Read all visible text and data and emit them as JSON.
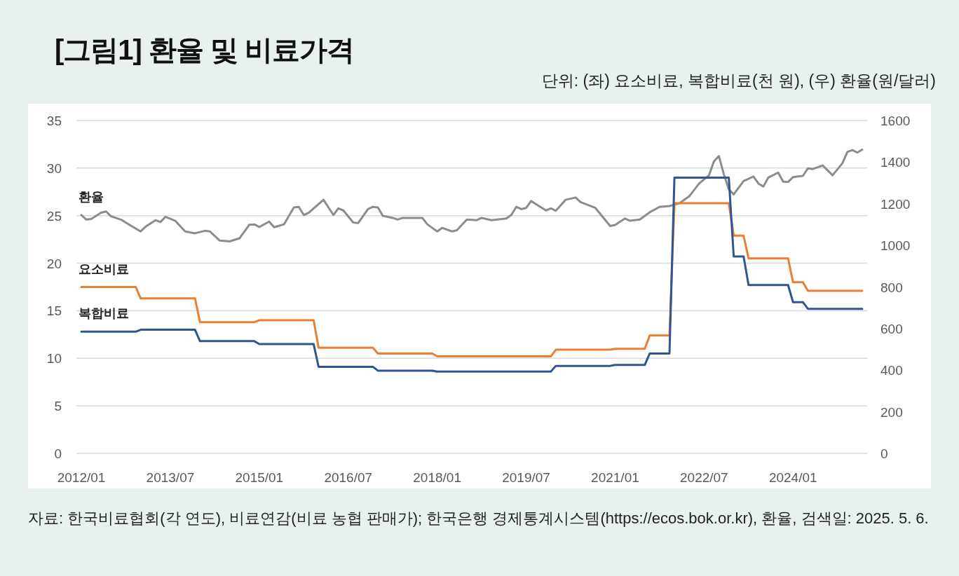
{
  "chart_data": {
    "type": "line",
    "title": "[그림1] 환율 및 비료가격",
    "subtitle": "단위: (좌) 요소비료, 복합비료(천 원), (우) 환율(원/달러)",
    "annotations": [
      "자료: 한국비료협회(각 연도), 비료연감(비료 농협 판매가); 한국은행 경제통계시스템(https://ecos.bok.or.kr), 환율, 검색일: 2025. 5. 6."
    ],
    "xlim": [
      "2011-12",
      "2025-04"
    ],
    "xticks": [
      {
        "value": "2012-01",
        "label": "2012/01"
      },
      {
        "value": "2013-07",
        "label": "2013/07"
      },
      {
        "value": "2015-01",
        "label": "2015/01"
      },
      {
        "value": "2016-07",
        "label": "2016/07"
      },
      {
        "value": "2018-01",
        "label": "2018/01"
      },
      {
        "value": "2019-07",
        "label": "2019/07"
      },
      {
        "value": "2021-01",
        "label": "2021/01"
      },
      {
        "value": "2022-07",
        "label": "2022/07"
      },
      {
        "value": "2024-01",
        "label": "2024/01"
      }
    ],
    "ylim": [
      0,
      35
    ],
    "yticks": [
      0,
      5,
      10,
      15,
      20,
      25,
      30,
      35
    ],
    "y2lim": [
      0,
      1600
    ],
    "y2ticks": [
      0,
      200,
      400,
      600,
      800,
      1000,
      1200,
      1400,
      1600
    ],
    "grid": "y",
    "series": [
      {
        "name": "환율",
        "color": "#8c8c8c",
        "axis": "y2",
        "x": [
          "2012-01",
          "2012-02",
          "2012-03",
          "2012-05",
          "2012-06",
          "2012-07",
          "2012-09",
          "2012-11",
          "2013-01",
          "2013-02",
          "2013-04",
          "2013-05",
          "2013-06",
          "2013-08",
          "2013-10",
          "2013-12",
          "2014-02",
          "2014-03",
          "2014-05",
          "2014-07",
          "2014-09",
          "2014-11",
          "2014-12",
          "2015-01",
          "2015-03",
          "2015-04",
          "2015-06",
          "2015-08",
          "2015-09",
          "2015-10",
          "2015-11",
          "2016-02",
          "2016-04",
          "2016-05",
          "2016-06",
          "2016-08",
          "2016-09",
          "2016-11",
          "2016-12",
          "2017-01",
          "2017-02",
          "2017-04",
          "2017-05",
          "2017-06",
          "2017-10",
          "2017-11",
          "2018-01",
          "2018-02",
          "2018-04",
          "2018-05",
          "2018-07",
          "2018-09",
          "2018-10",
          "2018-12",
          "2019-03",
          "2019-04",
          "2019-05",
          "2019-06",
          "2019-07",
          "2019-08",
          "2019-11",
          "2019-12",
          "2020-01",
          "2020-03",
          "2020-05",
          "2020-06",
          "2020-09",
          "2020-12",
          "2021-01",
          "2021-03",
          "2021-04",
          "2021-06",
          "2021-08",
          "2021-10",
          "2021-12",
          "2022-02",
          "2022-04",
          "2022-06",
          "2022-08",
          "2022-09",
          "2022-10",
          "2022-11",
          "2022-12",
          "2023-01",
          "2023-03",
          "2023-05",
          "2023-06",
          "2023-07",
          "2023-08",
          "2023-10",
          "2023-11",
          "2023-12",
          "2024-01",
          "2024-03",
          "2024-04",
          "2024-05",
          "2024-07",
          "2024-09",
          "2024-11",
          "2024-12",
          "2025-01",
          "2025-02",
          "2025-03"
        ],
        "values": [
          1146,
          1124,
          1127,
          1157,
          1163,
          1140,
          1124,
          1095,
          1067,
          1090,
          1121,
          1112,
          1137,
          1118,
          1067,
          1058,
          1070,
          1067,
          1023,
          1019,
          1034,
          1099,
          1101,
          1088,
          1114,
          1087,
          1101,
          1182,
          1185,
          1146,
          1157,
          1219,
          1146,
          1178,
          1168,
          1110,
          1107,
          1174,
          1185,
          1182,
          1142,
          1132,
          1124,
          1132,
          1132,
          1101,
          1067,
          1084,
          1067,
          1073,
          1124,
          1121,
          1132,
          1121,
          1129,
          1146,
          1185,
          1174,
          1180,
          1213,
          1168,
          1178,
          1166,
          1219,
          1230,
          1208,
          1180,
          1093,
          1098,
          1129,
          1118,
          1124,
          1159,
          1185,
          1189,
          1202,
          1236,
          1297,
          1337,
          1404,
          1429,
          1342,
          1269,
          1245,
          1309,
          1331,
          1297,
          1283,
          1326,
          1350,
          1306,
          1305,
          1328,
          1334,
          1370,
          1367,
          1384,
          1337,
          1395,
          1449,
          1458,
          1446,
          1460
        ]
      },
      {
        "name": "요소비료",
        "color": "#ed7d31",
        "x": [
          "2012-01",
          "2012-12",
          "2013-01",
          "2013-12",
          "2014-01",
          "2014-12",
          "2015-01",
          "2015-12",
          "2016-01",
          "2016-12",
          "2017-01",
          "2017-12",
          "2018-01",
          "2019-12",
          "2020-01",
          "2020-12",
          "2021-01",
          "2021-07",
          "2021-08",
          "2021-12",
          "2022-01",
          "2022-12",
          "2023-01",
          "2023-03",
          "2023-04",
          "2023-12",
          "2024-01",
          "2024-03",
          "2024-04",
          "2025-03"
        ],
        "values": [
          17.5,
          17.5,
          16.3,
          16.3,
          13.8,
          13.8,
          14.0,
          14.0,
          11.1,
          11.1,
          10.5,
          10.5,
          10.2,
          10.2,
          10.9,
          10.9,
          11.0,
          11.0,
          12.4,
          12.4,
          26.3,
          26.3,
          22.9,
          22.9,
          20.5,
          20.5,
          18.0,
          18.0,
          17.1,
          17.1
        ]
      },
      {
        "name": "복합비료",
        "color": "#2f5597",
        "x": [
          "2012-01",
          "2012-12",
          "2013-01",
          "2013-12",
          "2014-01",
          "2014-12",
          "2015-01",
          "2015-12",
          "2016-01",
          "2016-12",
          "2017-01",
          "2017-12",
          "2018-01",
          "2019-12",
          "2020-01",
          "2020-12",
          "2021-01",
          "2021-07",
          "2021-08",
          "2021-12",
          "2022-01",
          "2022-12",
          "2023-01",
          "2023-03",
          "2023-04",
          "2023-12",
          "2024-01",
          "2024-03",
          "2024-04",
          "2025-03"
        ],
        "values": [
          12.8,
          12.8,
          13.0,
          13.0,
          11.8,
          11.8,
          11.5,
          11.5,
          9.1,
          9.1,
          8.7,
          8.7,
          8.6,
          8.6,
          9.2,
          9.2,
          9.3,
          9.3,
          10.5,
          10.5,
          29.0,
          29.0,
          20.7,
          20.7,
          17.7,
          17.7,
          15.9,
          15.9,
          15.2,
          15.2
        ]
      }
    ]
  }
}
